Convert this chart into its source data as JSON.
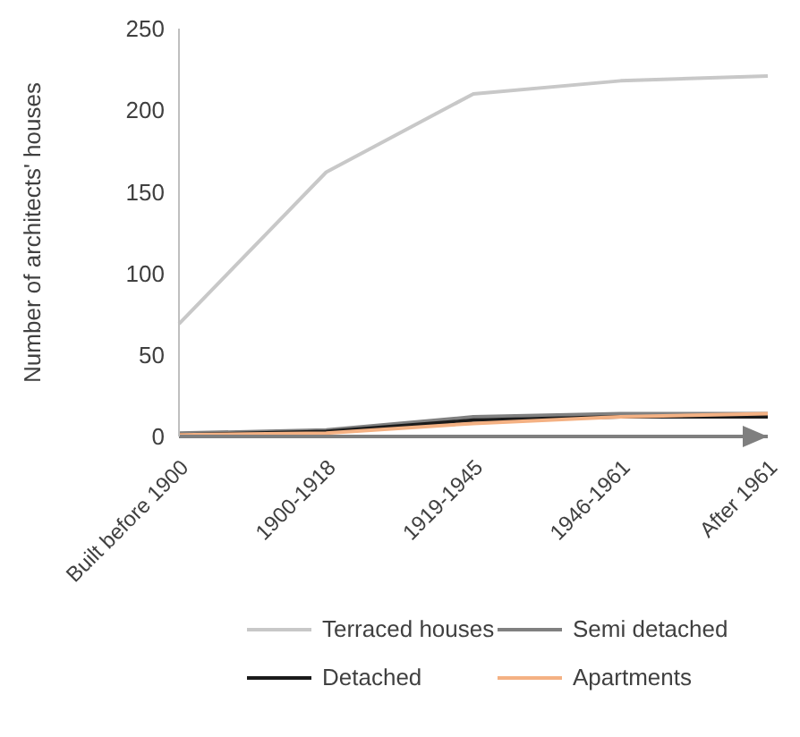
{
  "chart_data": {
    "type": "line",
    "ylabel": "Number of architects' houses",
    "categories": [
      "Built before 1900",
      "1900-1918",
      "1919-1945",
      "1946-1961",
      "After 1961"
    ],
    "series": [
      {
        "name": "Terraced houses",
        "color": "#c8c8c8",
        "values": [
          69,
          162,
          210,
          218,
          221
        ]
      },
      {
        "name": "Semi detached",
        "color": "#808080",
        "values": [
          2,
          4,
          12,
          14,
          14
        ]
      },
      {
        "name": "Detached",
        "color": "#1a1a1a",
        "values": [
          1,
          3,
          10,
          12,
          12
        ]
      },
      {
        "name": "Apartments",
        "color": "#f4b183",
        "values": [
          1,
          2,
          8,
          12,
          14
        ]
      }
    ],
    "ylim": [
      0,
      250
    ],
    "yticks": [
      0,
      50,
      100,
      150,
      200,
      250
    ],
    "grid": false,
    "legend": "bottom",
    "marker": "none",
    "line_style": "solid"
  }
}
